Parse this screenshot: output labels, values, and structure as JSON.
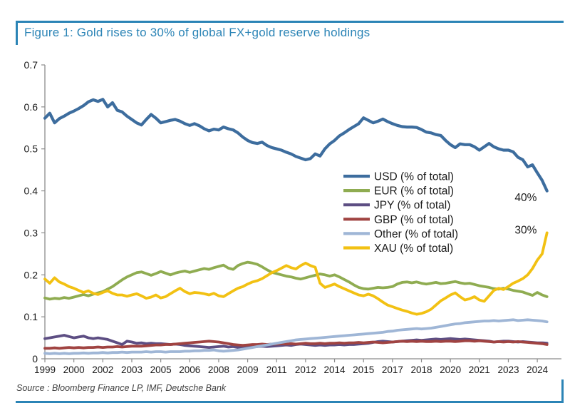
{
  "figure": {
    "title": "Figure 1: Gold rises to 30% of global FX+gold reserve holdings",
    "source": "Source : Bloomberg Finance LP, IMF, Deutsche Bank",
    "accent_color": "#2B84B6",
    "axis_color": "#8c8c8c",
    "text_color": "#1a1a1a"
  },
  "chart_data": {
    "type": "line",
    "title": "Figure 1: Gold rises to 30% of global FX+gold reserve holdings",
    "xlabel": "",
    "ylabel": "",
    "x_unit": "year, quarterly observations",
    "x_start": 1999.0,
    "x_step": 0.25,
    "xlim": [
      1999,
      2025.75
    ],
    "ylim": [
      0,
      0.7
    ],
    "grid": false,
    "legend_position": "center-right",
    "yticks": {
      "values": [
        0,
        0.1,
        0.2,
        0.3,
        0.4,
        0.5,
        0.6,
        0.7
      ],
      "labels": [
        "0",
        "0.1",
        "0.2",
        "0.3",
        "0.4",
        "0.5",
        "0.6",
        "0.7"
      ]
    },
    "xticks": {
      "positions": [
        1999,
        2000.5,
        2002,
        2003.5,
        2005,
        2006.5,
        2008,
        2009.5,
        2011,
        2012.5,
        2014,
        2015.5,
        2017,
        2018.5,
        2020,
        2021.5,
        2023,
        2024.5
      ],
      "labels": [
        "1999",
        "2000",
        "2002",
        "2003",
        "2005",
        "2006",
        "2008",
        "2009",
        "2011",
        "2012",
        "2014",
        "2015",
        "2017",
        "2018",
        "2020",
        "2021",
        "2023",
        "2024"
      ]
    },
    "annotations": [
      {
        "text": "40%",
        "x": 2023.9,
        "y": 0.384
      },
      {
        "text": "30%",
        "x": 2023.9,
        "y": 0.307
      }
    ],
    "series": [
      {
        "name": "USD",
        "label": "USD (% of total)",
        "color": "#3D6D9E",
        "width": 4.2,
        "values": [
          0.573,
          0.585,
          0.562,
          0.572,
          0.578,
          0.585,
          0.59,
          0.596,
          0.603,
          0.612,
          0.617,
          0.613,
          0.618,
          0.6,
          0.61,
          0.592,
          0.588,
          0.578,
          0.57,
          0.562,
          0.557,
          0.57,
          0.582,
          0.573,
          0.562,
          0.565,
          0.568,
          0.57,
          0.566,
          0.56,
          0.556,
          0.56,
          0.555,
          0.548,
          0.543,
          0.547,
          0.545,
          0.552,
          0.548,
          0.545,
          0.538,
          0.528,
          0.52,
          0.515,
          0.513,
          0.516,
          0.508,
          0.503,
          0.5,
          0.497,
          0.492,
          0.488,
          0.482,
          0.478,
          0.474,
          0.477,
          0.488,
          0.483,
          0.5,
          0.512,
          0.52,
          0.531,
          0.538,
          0.546,
          0.553,
          0.56,
          0.574,
          0.568,
          0.562,
          0.566,
          0.571,
          0.565,
          0.56,
          0.556,
          0.553,
          0.552,
          0.552,
          0.551,
          0.546,
          0.54,
          0.538,
          0.534,
          0.532,
          0.52,
          0.51,
          0.503,
          0.512,
          0.51,
          0.51,
          0.505,
          0.497,
          0.505,
          0.513,
          0.505,
          0.5,
          0.497,
          0.497,
          0.493,
          0.48,
          0.474,
          0.457,
          0.462,
          0.443,
          0.425,
          0.4
        ]
      },
      {
        "name": "EUR",
        "label": "EUR (% of total)",
        "color": "#8FAC51",
        "width": 3.8,
        "values": [
          0.145,
          0.142,
          0.144,
          0.143,
          0.146,
          0.144,
          0.147,
          0.15,
          0.153,
          0.15,
          0.154,
          0.157,
          0.16,
          0.166,
          0.172,
          0.18,
          0.188,
          0.195,
          0.2,
          0.205,
          0.207,
          0.203,
          0.199,
          0.203,
          0.208,
          0.204,
          0.2,
          0.204,
          0.207,
          0.209,
          0.206,
          0.209,
          0.212,
          0.215,
          0.213,
          0.217,
          0.22,
          0.223,
          0.216,
          0.213,
          0.222,
          0.227,
          0.23,
          0.228,
          0.225,
          0.219,
          0.212,
          0.206,
          0.203,
          0.2,
          0.197,
          0.195,
          0.192,
          0.19,
          0.193,
          0.196,
          0.199,
          0.202,
          0.2,
          0.197,
          0.2,
          0.195,
          0.189,
          0.183,
          0.176,
          0.17,
          0.167,
          0.166,
          0.168,
          0.17,
          0.169,
          0.17,
          0.172,
          0.178,
          0.182,
          0.183,
          0.181,
          0.183,
          0.18,
          0.178,
          0.18,
          0.182,
          0.179,
          0.18,
          0.182,
          0.184,
          0.181,
          0.179,
          0.18,
          0.177,
          0.174,
          0.172,
          0.17,
          0.167,
          0.166,
          0.168,
          0.166,
          0.163,
          0.161,
          0.159,
          0.155,
          0.151,
          0.158,
          0.152,
          0.148
        ]
      },
      {
        "name": "JPY",
        "label": "JPY (% of total)",
        "color": "#5D4E83",
        "width": 3.8,
        "values": [
          0.048,
          0.05,
          0.052,
          0.054,
          0.056,
          0.053,
          0.05,
          0.052,
          0.054,
          0.05,
          0.048,
          0.05,
          0.048,
          0.046,
          0.042,
          0.038,
          0.034,
          0.042,
          0.04,
          0.037,
          0.038,
          0.036,
          0.037,
          0.036,
          0.036,
          0.035,
          0.034,
          0.035,
          0.034,
          0.032,
          0.031,
          0.03,
          0.029,
          0.028,
          0.027,
          0.028,
          0.029,
          0.03,
          0.028,
          0.029,
          0.027,
          0.028,
          0.027,
          0.028,
          0.029,
          0.03,
          0.029,
          0.03,
          0.031,
          0.032,
          0.033,
          0.032,
          0.034,
          0.035,
          0.034,
          0.033,
          0.032,
          0.033,
          0.032,
          0.033,
          0.033,
          0.034,
          0.033,
          0.034,
          0.034,
          0.035,
          0.036,
          0.037,
          0.039,
          0.041,
          0.042,
          0.041,
          0.04,
          0.041,
          0.042,
          0.043,
          0.044,
          0.045,
          0.044,
          0.045,
          0.046,
          0.047,
          0.046,
          0.047,
          0.048,
          0.047,
          0.046,
          0.047,
          0.046,
          0.045,
          0.044,
          0.043,
          0.042,
          0.04,
          0.041,
          0.042,
          0.042,
          0.041,
          0.04,
          0.041,
          0.04,
          0.039,
          0.038,
          0.038,
          0.037
        ]
      },
      {
        "name": "GBP",
        "label": "GBP (% of total)",
        "color": "#A04341",
        "width": 3.8,
        "values": [
          0.025,
          0.025,
          0.026,
          0.025,
          0.026,
          0.027,
          0.026,
          0.027,
          0.026,
          0.027,
          0.027,
          0.028,
          0.027,
          0.028,
          0.028,
          0.029,
          0.028,
          0.029,
          0.03,
          0.03,
          0.03,
          0.031,
          0.032,
          0.033,
          0.033,
          0.034,
          0.034,
          0.035,
          0.036,
          0.037,
          0.038,
          0.039,
          0.04,
          0.041,
          0.042,
          0.041,
          0.04,
          0.038,
          0.036,
          0.034,
          0.033,
          0.032,
          0.033,
          0.034,
          0.034,
          0.035,
          0.034,
          0.035,
          0.035,
          0.036,
          0.035,
          0.036,
          0.035,
          0.036,
          0.037,
          0.036,
          0.036,
          0.037,
          0.036,
          0.037,
          0.037,
          0.038,
          0.037,
          0.038,
          0.038,
          0.039,
          0.038,
          0.039,
          0.04,
          0.039,
          0.038,
          0.039,
          0.04,
          0.041,
          0.042,
          0.041,
          0.042,
          0.041,
          0.042,
          0.041,
          0.041,
          0.042,
          0.041,
          0.042,
          0.042,
          0.041,
          0.042,
          0.043,
          0.043,
          0.042,
          0.043,
          0.042,
          0.041,
          0.04,
          0.041,
          0.04,
          0.041,
          0.04,
          0.041,
          0.04,
          0.039,
          0.038,
          0.037,
          0.036,
          0.034
        ]
      },
      {
        "name": "Other",
        "label": "Other (% of total)",
        "color": "#9FB6D6",
        "width": 3.8,
        "values": [
          0.013,
          0.012,
          0.013,
          0.012,
          0.013,
          0.012,
          0.013,
          0.013,
          0.014,
          0.013,
          0.014,
          0.014,
          0.015,
          0.014,
          0.015,
          0.015,
          0.016,
          0.015,
          0.016,
          0.016,
          0.016,
          0.017,
          0.016,
          0.017,
          0.017,
          0.016,
          0.017,
          0.017,
          0.017,
          0.018,
          0.018,
          0.019,
          0.019,
          0.02,
          0.02,
          0.021,
          0.019,
          0.018,
          0.019,
          0.02,
          0.021,
          0.023,
          0.025,
          0.027,
          0.029,
          0.031,
          0.033,
          0.035,
          0.037,
          0.039,
          0.041,
          0.043,
          0.045,
          0.046,
          0.047,
          0.048,
          0.049,
          0.05,
          0.051,
          0.052,
          0.053,
          0.054,
          0.055,
          0.056,
          0.057,
          0.058,
          0.059,
          0.06,
          0.061,
          0.062,
          0.063,
          0.065,
          0.066,
          0.068,
          0.069,
          0.07,
          0.071,
          0.072,
          0.071,
          0.072,
          0.073,
          0.075,
          0.077,
          0.079,
          0.081,
          0.083,
          0.084,
          0.086,
          0.087,
          0.088,
          0.089,
          0.09,
          0.09,
          0.091,
          0.09,
          0.091,
          0.092,
          0.093,
          0.091,
          0.092,
          0.093,
          0.092,
          0.091,
          0.09,
          0.088
        ]
      },
      {
        "name": "XAU",
        "label": "XAU (% of total)",
        "color": "#F2C113",
        "width": 3.8,
        "values": [
          0.19,
          0.18,
          0.193,
          0.183,
          0.178,
          0.172,
          0.168,
          0.163,
          0.158,
          0.162,
          0.156,
          0.153,
          0.158,
          0.162,
          0.156,
          0.152,
          0.152,
          0.149,
          0.152,
          0.155,
          0.15,
          0.144,
          0.147,
          0.152,
          0.145,
          0.148,
          0.155,
          0.162,
          0.168,
          0.16,
          0.155,
          0.158,
          0.157,
          0.155,
          0.152,
          0.156,
          0.15,
          0.148,
          0.155,
          0.162,
          0.168,
          0.172,
          0.178,
          0.183,
          0.186,
          0.191,
          0.198,
          0.205,
          0.21,
          0.216,
          0.222,
          0.217,
          0.214,
          0.222,
          0.228,
          0.222,
          0.218,
          0.18,
          0.17,
          0.174,
          0.178,
          0.172,
          0.167,
          0.162,
          0.157,
          0.152,
          0.15,
          0.154,
          0.15,
          0.143,
          0.135,
          0.128,
          0.124,
          0.12,
          0.116,
          0.113,
          0.109,
          0.106,
          0.108,
          0.112,
          0.118,
          0.128,
          0.138,
          0.145,
          0.152,
          0.157,
          0.148,
          0.14,
          0.143,
          0.148,
          0.14,
          0.137,
          0.15,
          0.163,
          0.168,
          0.165,
          0.172,
          0.18,
          0.185,
          0.191,
          0.2,
          0.215,
          0.235,
          0.25,
          0.3
        ]
      }
    ]
  }
}
